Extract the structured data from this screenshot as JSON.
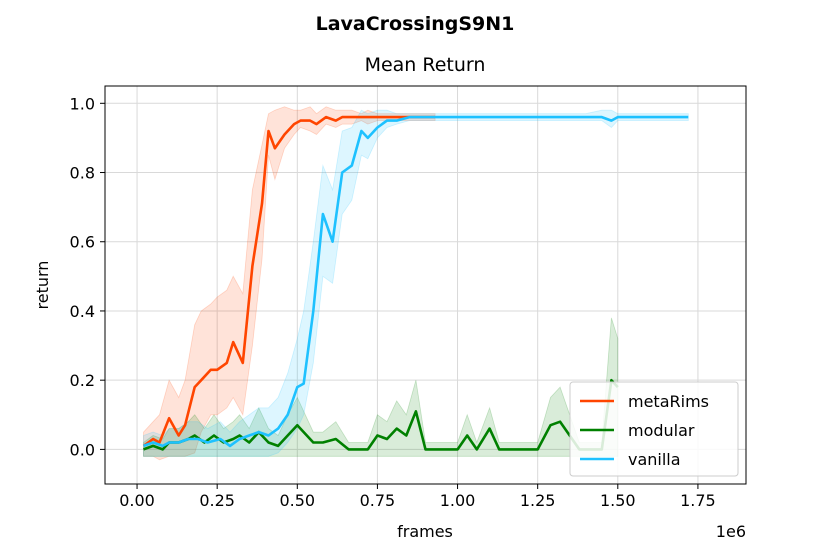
{
  "chart_data": {
    "type": "line",
    "suptitle": "LavaCrossingS9N1",
    "title": "Mean Return",
    "xlabel": "frames",
    "ylabel": "return",
    "x_offset_label": "1e6",
    "xlim": [
      -0.1,
      1.9
    ],
    "ylim": [
      -0.1,
      1.05
    ],
    "xticks": [
      0.0,
      0.25,
      0.5,
      0.75,
      1.0,
      1.25,
      1.5,
      1.75
    ],
    "xtick_labels": [
      "0.00",
      "0.25",
      "0.50",
      "0.75",
      "1.00",
      "1.25",
      "1.50",
      "1.75"
    ],
    "yticks": [
      0.0,
      0.2,
      0.4,
      0.6,
      0.8,
      1.0
    ],
    "ytick_labels": [
      "0.0",
      "0.2",
      "0.4",
      "0.6",
      "0.8",
      "1.0"
    ],
    "grid": true,
    "legend_position": "lower-right",
    "series": [
      {
        "name": "metaRims",
        "color": "#ff4500",
        "x": [
          0.02,
          0.05,
          0.07,
          0.1,
          0.13,
          0.15,
          0.18,
          0.2,
          0.23,
          0.25,
          0.28,
          0.3,
          0.33,
          0.36,
          0.39,
          0.41,
          0.43,
          0.46,
          0.49,
          0.51,
          0.54,
          0.56,
          0.59,
          0.62,
          0.64,
          0.67,
          0.7,
          0.72,
          0.75,
          0.8,
          0.85,
          0.9,
          0.93
        ],
        "y": [
          0.01,
          0.03,
          0.02,
          0.09,
          0.04,
          0.07,
          0.18,
          0.2,
          0.23,
          0.23,
          0.25,
          0.31,
          0.25,
          0.53,
          0.71,
          0.92,
          0.87,
          0.91,
          0.94,
          0.95,
          0.95,
          0.94,
          0.96,
          0.95,
          0.96,
          0.96,
          0.96,
          0.96,
          0.96,
          0.96,
          0.96,
          0.96,
          0.96
        ],
        "y_lower": [
          -0.02,
          -0.02,
          -0.03,
          -0.02,
          -0.02,
          -0.02,
          -0.01,
          0.05,
          0.1,
          0.1,
          0.12,
          0.15,
          0.1,
          0.3,
          0.55,
          0.85,
          0.78,
          0.87,
          0.91,
          0.93,
          0.92,
          0.91,
          0.94,
          0.93,
          0.94,
          0.94,
          0.95,
          0.94,
          0.95,
          0.95,
          0.95,
          0.95,
          0.95
        ],
        "y_upper": [
          0.05,
          0.08,
          0.1,
          0.2,
          0.15,
          0.2,
          0.36,
          0.4,
          0.42,
          0.44,
          0.46,
          0.5,
          0.45,
          0.75,
          0.88,
          0.97,
          0.98,
          0.99,
          0.98,
          0.98,
          0.99,
          0.97,
          0.99,
          0.98,
          0.98,
          0.98,
          0.97,
          0.98,
          0.97,
          0.97,
          0.97,
          0.97,
          0.97
        ]
      },
      {
        "name": "modular",
        "color": "#008000",
        "x": [
          0.02,
          0.05,
          0.08,
          0.1,
          0.13,
          0.16,
          0.18,
          0.21,
          0.24,
          0.27,
          0.3,
          0.32,
          0.35,
          0.38,
          0.41,
          0.44,
          0.47,
          0.5,
          0.55,
          0.58,
          0.62,
          0.66,
          0.69,
          0.72,
          0.75,
          0.78,
          0.81,
          0.84,
          0.87,
          0.9,
          0.93,
          0.96,
          1.0,
          1.03,
          1.06,
          1.1,
          1.13,
          1.16,
          1.2,
          1.25,
          1.29,
          1.32,
          1.35,
          1.38,
          1.42,
          1.45,
          1.48,
          1.5
        ],
        "y": [
          0.0,
          0.01,
          0.0,
          0.02,
          0.02,
          0.03,
          0.04,
          0.02,
          0.04,
          0.02,
          0.03,
          0.04,
          0.02,
          0.05,
          0.02,
          0.01,
          0.04,
          0.07,
          0.02,
          0.02,
          0.03,
          0.0,
          0.0,
          0.0,
          0.04,
          0.03,
          0.06,
          0.04,
          0.11,
          0.0,
          0.0,
          0.0,
          0.0,
          0.04,
          0.0,
          0.06,
          0.0,
          0.0,
          0.0,
          0.0,
          0.07,
          0.08,
          0.04,
          0.0,
          0.0,
          0.0,
          0.2,
          0.18
        ],
        "y_lower": [
          -0.02,
          -0.02,
          -0.02,
          -0.02,
          -0.02,
          -0.02,
          -0.02,
          -0.02,
          -0.02,
          -0.02,
          -0.02,
          -0.02,
          -0.02,
          -0.02,
          -0.02,
          -0.02,
          -0.02,
          -0.02,
          -0.02,
          -0.02,
          -0.02,
          -0.02,
          -0.02,
          -0.02,
          -0.02,
          -0.02,
          -0.02,
          -0.02,
          -0.02,
          -0.02,
          -0.02,
          -0.02,
          -0.02,
          -0.02,
          -0.02,
          -0.02,
          -0.02,
          -0.02,
          -0.02,
          -0.02,
          -0.02,
          -0.02,
          -0.02,
          -0.02,
          -0.02,
          -0.02,
          -0.02,
          -0.02
        ],
        "y_upper": [
          0.02,
          0.04,
          0.03,
          0.06,
          0.06,
          0.08,
          0.1,
          0.06,
          0.1,
          0.06,
          0.08,
          0.1,
          0.06,
          0.12,
          0.06,
          0.04,
          0.1,
          0.15,
          0.05,
          0.05,
          0.08,
          0.02,
          0.02,
          0.02,
          0.1,
          0.08,
          0.14,
          0.1,
          0.2,
          0.02,
          0.02,
          0.02,
          0.02,
          0.1,
          0.02,
          0.12,
          0.02,
          0.02,
          0.02,
          0.02,
          0.15,
          0.18,
          0.1,
          0.02,
          0.02,
          0.02,
          0.38,
          0.32
        ]
      },
      {
        "name": "vanilla",
        "color": "#1ec1ff",
        "x": [
          0.02,
          0.05,
          0.08,
          0.1,
          0.13,
          0.16,
          0.19,
          0.22,
          0.26,
          0.29,
          0.32,
          0.35,
          0.38,
          0.41,
          0.44,
          0.47,
          0.5,
          0.52,
          0.55,
          0.58,
          0.61,
          0.64,
          0.67,
          0.7,
          0.72,
          0.75,
          0.78,
          0.81,
          0.85,
          0.9,
          0.95,
          1.0,
          1.1,
          1.2,
          1.3,
          1.4,
          1.45,
          1.48,
          1.5,
          1.6,
          1.72
        ],
        "y": [
          0.01,
          0.02,
          0.01,
          0.02,
          0.02,
          0.03,
          0.03,
          0.02,
          0.03,
          0.01,
          0.03,
          0.04,
          0.05,
          0.04,
          0.06,
          0.1,
          0.18,
          0.19,
          0.4,
          0.68,
          0.6,
          0.8,
          0.82,
          0.92,
          0.9,
          0.93,
          0.95,
          0.95,
          0.96,
          0.96,
          0.96,
          0.96,
          0.96,
          0.96,
          0.96,
          0.96,
          0.96,
          0.95,
          0.96,
          0.96,
          0.96
        ],
        "y_lower": [
          -0.02,
          -0.02,
          -0.02,
          -0.02,
          -0.02,
          -0.02,
          -0.02,
          -0.02,
          -0.02,
          -0.02,
          -0.02,
          -0.02,
          -0.02,
          -0.02,
          -0.01,
          0.02,
          0.06,
          0.1,
          0.25,
          0.5,
          0.48,
          0.68,
          0.72,
          0.85,
          0.84,
          0.9,
          0.93,
          0.94,
          0.95,
          0.95,
          0.95,
          0.95,
          0.95,
          0.95,
          0.95,
          0.95,
          0.95,
          0.93,
          0.95,
          0.95,
          0.95
        ],
        "y_upper": [
          0.04,
          0.05,
          0.04,
          0.06,
          0.06,
          0.08,
          0.08,
          0.06,
          0.08,
          0.05,
          0.08,
          0.1,
          0.12,
          0.12,
          0.15,
          0.22,
          0.32,
          0.4,
          0.6,
          0.82,
          0.75,
          0.92,
          0.93,
          0.98,
          0.97,
          0.98,
          0.98,
          0.97,
          0.97,
          0.97,
          0.97,
          0.97,
          0.97,
          0.97,
          0.97,
          0.97,
          0.98,
          0.98,
          0.97,
          0.97,
          0.97
        ]
      }
    ]
  }
}
